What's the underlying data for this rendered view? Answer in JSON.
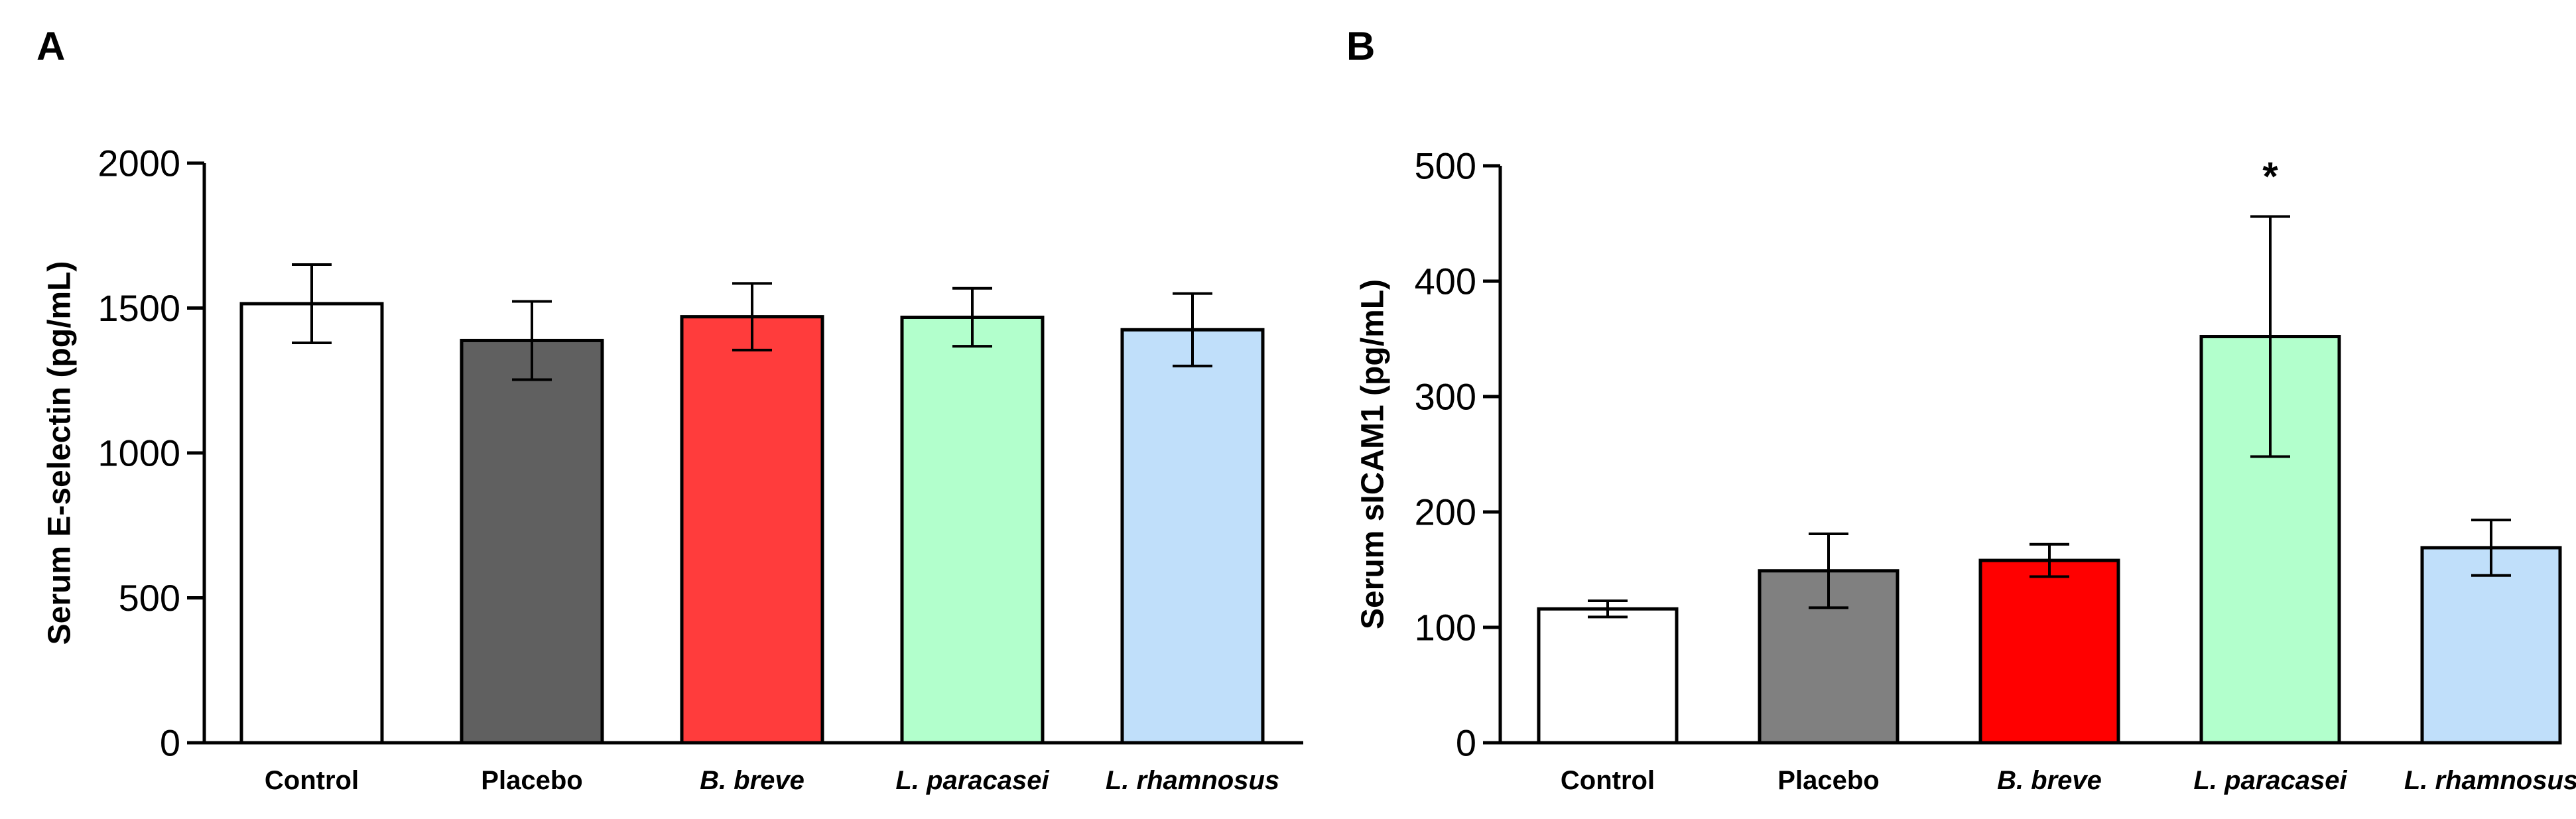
{
  "chart_data": [
    {
      "panel": "A",
      "type": "bar",
      "title": "",
      "xlabel": "",
      "ylabel": "Serum E-selectin (pg/mL)",
      "ylim": [
        0,
        2000
      ],
      "yticks": [
        0,
        500,
        1000,
        1500,
        2000
      ],
      "grid": false,
      "categories": [
        "Control",
        "Placebo",
        "B. breve",
        "L. paracasei",
        "L. rhamnosus"
      ],
      "italic": [
        false,
        false,
        true,
        true,
        true
      ],
      "values": [
        1515,
        1388,
        1470,
        1468,
        1425
      ],
      "errors": [
        135,
        135,
        115,
        100,
        125
      ],
      "colors": [
        "#ffffff",
        "#606060",
        "#ff3c3c",
        "#b2ffcc",
        "#c0dffa"
      ],
      "annotations": []
    },
    {
      "panel": "B",
      "type": "bar",
      "title": "",
      "xlabel": "",
      "ylabel": "Serum sICAM1 (pg/mL)",
      "ylim": [
        0,
        500
      ],
      "yticks": [
        0,
        100,
        200,
        300,
        400,
        500
      ],
      "grid": false,
      "categories": [
        "Control",
        "Placebo",
        "B. breve",
        "L. paracasei",
        "L. rhamnosus"
      ],
      "italic": [
        false,
        false,
        true,
        true,
        true
      ],
      "values": [
        116,
        149,
        158,
        352,
        169
      ],
      "errors": [
        7,
        32,
        14,
        104,
        24
      ],
      "colors": [
        "#ffffff",
        "#808080",
        "#ff0000",
        "#b2ffcc",
        "#c0dffa"
      ],
      "annotations": [
        {
          "category": "L. paracasei",
          "text": "*"
        }
      ]
    }
  ]
}
